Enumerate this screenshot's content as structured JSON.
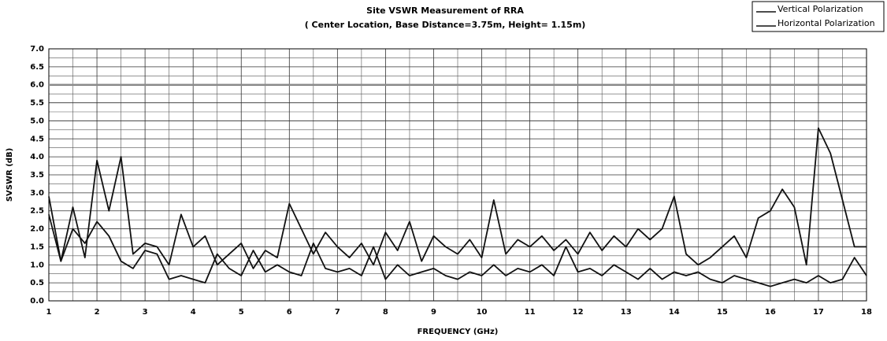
{
  "chart_data": {
    "type": "line",
    "title": "Site VSWR Measurement of RRA",
    "subtitle": "( Center  Location, Base Distance=3.75m, Height= 1.15m)",
    "x_label": "FREQUENCY (GHz)",
    "y_label": "SVSWR (dB)",
    "x": [
      1,
      1.25,
      1.5,
      1.75,
      2,
      2.25,
      2.5,
      2.75,
      3,
      3.25,
      3.5,
      3.75,
      4,
      4.25,
      4.5,
      4.75,
      5,
      5.25,
      5.5,
      5.75,
      6,
      6.25,
      6.5,
      6.75,
      7,
      7.25,
      7.5,
      7.75,
      8,
      8.25,
      8.5,
      8.75,
      9,
      9.25,
      9.5,
      9.75,
      10,
      10.25,
      10.5,
      10.75,
      11,
      11.25,
      11.5,
      11.75,
      12,
      12.25,
      12.5,
      12.75,
      13,
      13.25,
      13.5,
      13.75,
      14,
      14.25,
      14.5,
      14.75,
      15,
      15.25,
      15.5,
      15.75,
      16,
      16.25,
      16.5,
      16.75,
      17,
      17.25,
      17.5,
      17.75,
      18
    ],
    "series": [
      {
        "name": "Vertical Polarization",
        "color": "#111111",
        "values": [
          2.4,
          1.1,
          2.6,
          1.2,
          3.9,
          2.5,
          4.0,
          1.3,
          1.6,
          1.5,
          1.0,
          2.4,
          1.5,
          1.8,
          1.0,
          1.3,
          1.6,
          0.9,
          1.4,
          1.2,
          2.7,
          2.0,
          1.3,
          1.9,
          1.5,
          1.2,
          1.6,
          1.0,
          1.9,
          1.4,
          2.2,
          1.1,
          1.8,
          1.5,
          1.3,
          1.7,
          1.2,
          2.8,
          1.3,
          1.7,
          1.5,
          1.8,
          1.4,
          1.7,
          1.3,
          1.9,
          1.4,
          1.8,
          1.5,
          2.0,
          1.7,
          2.0,
          2.9,
          1.3,
          1.0,
          1.2,
          1.5,
          1.8,
          1.2,
          2.3,
          2.5,
          3.1,
          2.6,
          1.0,
          4.8,
          4.1,
          2.8,
          1.5,
          1.5
        ]
      },
      {
        "name": "Horizontal Polarization",
        "color": "#111111",
        "values": [
          2.9,
          1.1,
          2.0,
          1.6,
          2.2,
          1.8,
          1.1,
          0.9,
          1.4,
          1.3,
          0.6,
          0.7,
          0.6,
          0.5,
          1.3,
          0.9,
          0.7,
          1.4,
          0.8,
          1.0,
          0.8,
          0.7,
          1.6,
          0.9,
          0.8,
          0.9,
          0.7,
          1.5,
          0.6,
          1.0,
          0.7,
          0.8,
          0.9,
          0.7,
          0.6,
          0.8,
          0.7,
          1.0,
          0.7,
          0.9,
          0.8,
          1.0,
          0.7,
          1.5,
          0.8,
          0.9,
          0.7,
          1.0,
          0.8,
          0.6,
          0.9,
          0.6,
          0.8,
          0.7,
          0.8,
          0.6,
          0.5,
          0.7,
          0.6,
          0.5,
          0.4,
          0.5,
          0.6,
          0.5,
          0.7,
          0.5,
          0.6,
          1.2,
          0.7
        ]
      }
    ],
    "reference_line": {
      "value": 6,
      "color": "#8a8a8a"
    },
    "xlim": [
      1,
      18
    ],
    "xticks": [
      1,
      2,
      3,
      4,
      5,
      6,
      7,
      8,
      9,
      10,
      11,
      12,
      13,
      14,
      15,
      16,
      17,
      18
    ],
    "ylim": [
      0,
      7
    ],
    "yticks": [
      {
        "value": 0,
        "label": "0.0"
      },
      0.5,
      {
        "value": 1,
        "label": "1.0"
      },
      1.5,
      {
        "value": 2,
        "label": "2.0"
      },
      2.5,
      {
        "value": 3,
        "label": "3.0"
      },
      3.5,
      {
        "value": 4,
        "label": "4.0"
      },
      4.5,
      {
        "value": 5,
        "label": "5.0"
      },
      5.5,
      {
        "value": 6,
        "label": "6.0"
      },
      6.5,
      {
        "value": 7,
        "label": "7.0"
      }
    ],
    "grid": true,
    "legend": "top-right"
  }
}
